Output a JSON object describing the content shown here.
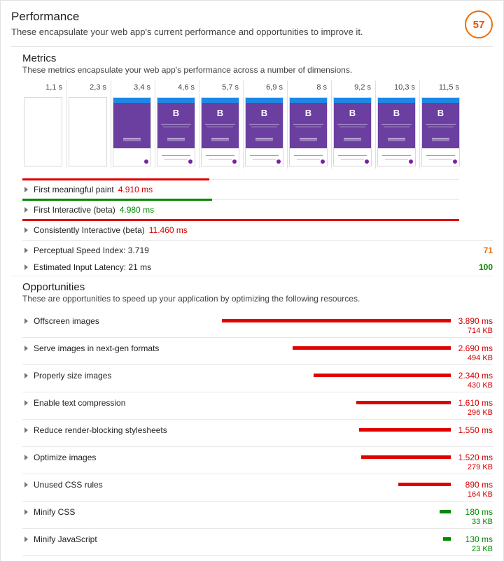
{
  "performance": {
    "title": "Performance",
    "description": "These encapsulate your web app's current performance and opportunities to improve it.",
    "score": "57"
  },
  "metrics": {
    "title": "Metrics",
    "description": "These metrics encapsulate your web app's performance across a number of dimensions.",
    "frames": [
      "1,1 s",
      "2,3 s",
      "3,4 s",
      "4,6 s",
      "5,7 s",
      "6,9 s",
      "8 s",
      "9,2 s",
      "10,3 s",
      "11,5 s"
    ],
    "thumb_logo": "B",
    "items": [
      {
        "label": "First meaningful paint",
        "value": "4.910 ms",
        "status": "red",
        "progress": 0.428
      },
      {
        "label": "First Interactive (beta)",
        "value": "4.980 ms",
        "status": "green",
        "progress": 0.434
      },
      {
        "label": "Consistently Interactive (beta)",
        "value": "11.460 ms",
        "status": "red",
        "progress": 1.0
      },
      {
        "label": "Perceptual Speed Index: 3.719",
        "value": "",
        "status": "",
        "score": "71",
        "score_color": "#ef6c00"
      },
      {
        "label": "Estimated Input Latency: 21 ms",
        "value": "",
        "status": "",
        "score": "100",
        "score_color": "#008a00"
      }
    ]
  },
  "opportunities": {
    "title": "Opportunities",
    "description": "These are opportunities to speed up your application by optimizing the following resources.",
    "items": [
      {
        "label": "Offscreen images",
        "ms": "3.890 ms",
        "kb": "714 KB",
        "fraction": 1.0,
        "color": "red"
      },
      {
        "label": "Serve images in next-gen formats",
        "ms": "2.690 ms",
        "kb": "494 KB",
        "fraction": 0.69,
        "color": "red"
      },
      {
        "label": "Properly size images",
        "ms": "2.340 ms",
        "kb": "430 KB",
        "fraction": 0.6,
        "color": "red"
      },
      {
        "label": "Enable text compression",
        "ms": "1.610 ms",
        "kb": "296 KB",
        "fraction": 0.414,
        "color": "red"
      },
      {
        "label": "Reduce render-blocking stylesheets",
        "ms": "1.550 ms",
        "kb": "",
        "fraction": 0.4,
        "color": "red"
      },
      {
        "label": "Optimize images",
        "ms": "1.520 ms",
        "kb": "279 KB",
        "fraction": 0.39,
        "color": "red"
      },
      {
        "label": "Unused CSS rules",
        "ms": "890 ms",
        "kb": "164 KB",
        "fraction": 0.23,
        "color": "red"
      },
      {
        "label": "Minify CSS",
        "ms": "180 ms",
        "kb": "33 KB",
        "fraction": 0.05,
        "color": "green"
      },
      {
        "label": "Minify JavaScript",
        "ms": "130 ms",
        "kb": "23 KB",
        "fraction": 0.035,
        "color": "green"
      }
    ]
  }
}
